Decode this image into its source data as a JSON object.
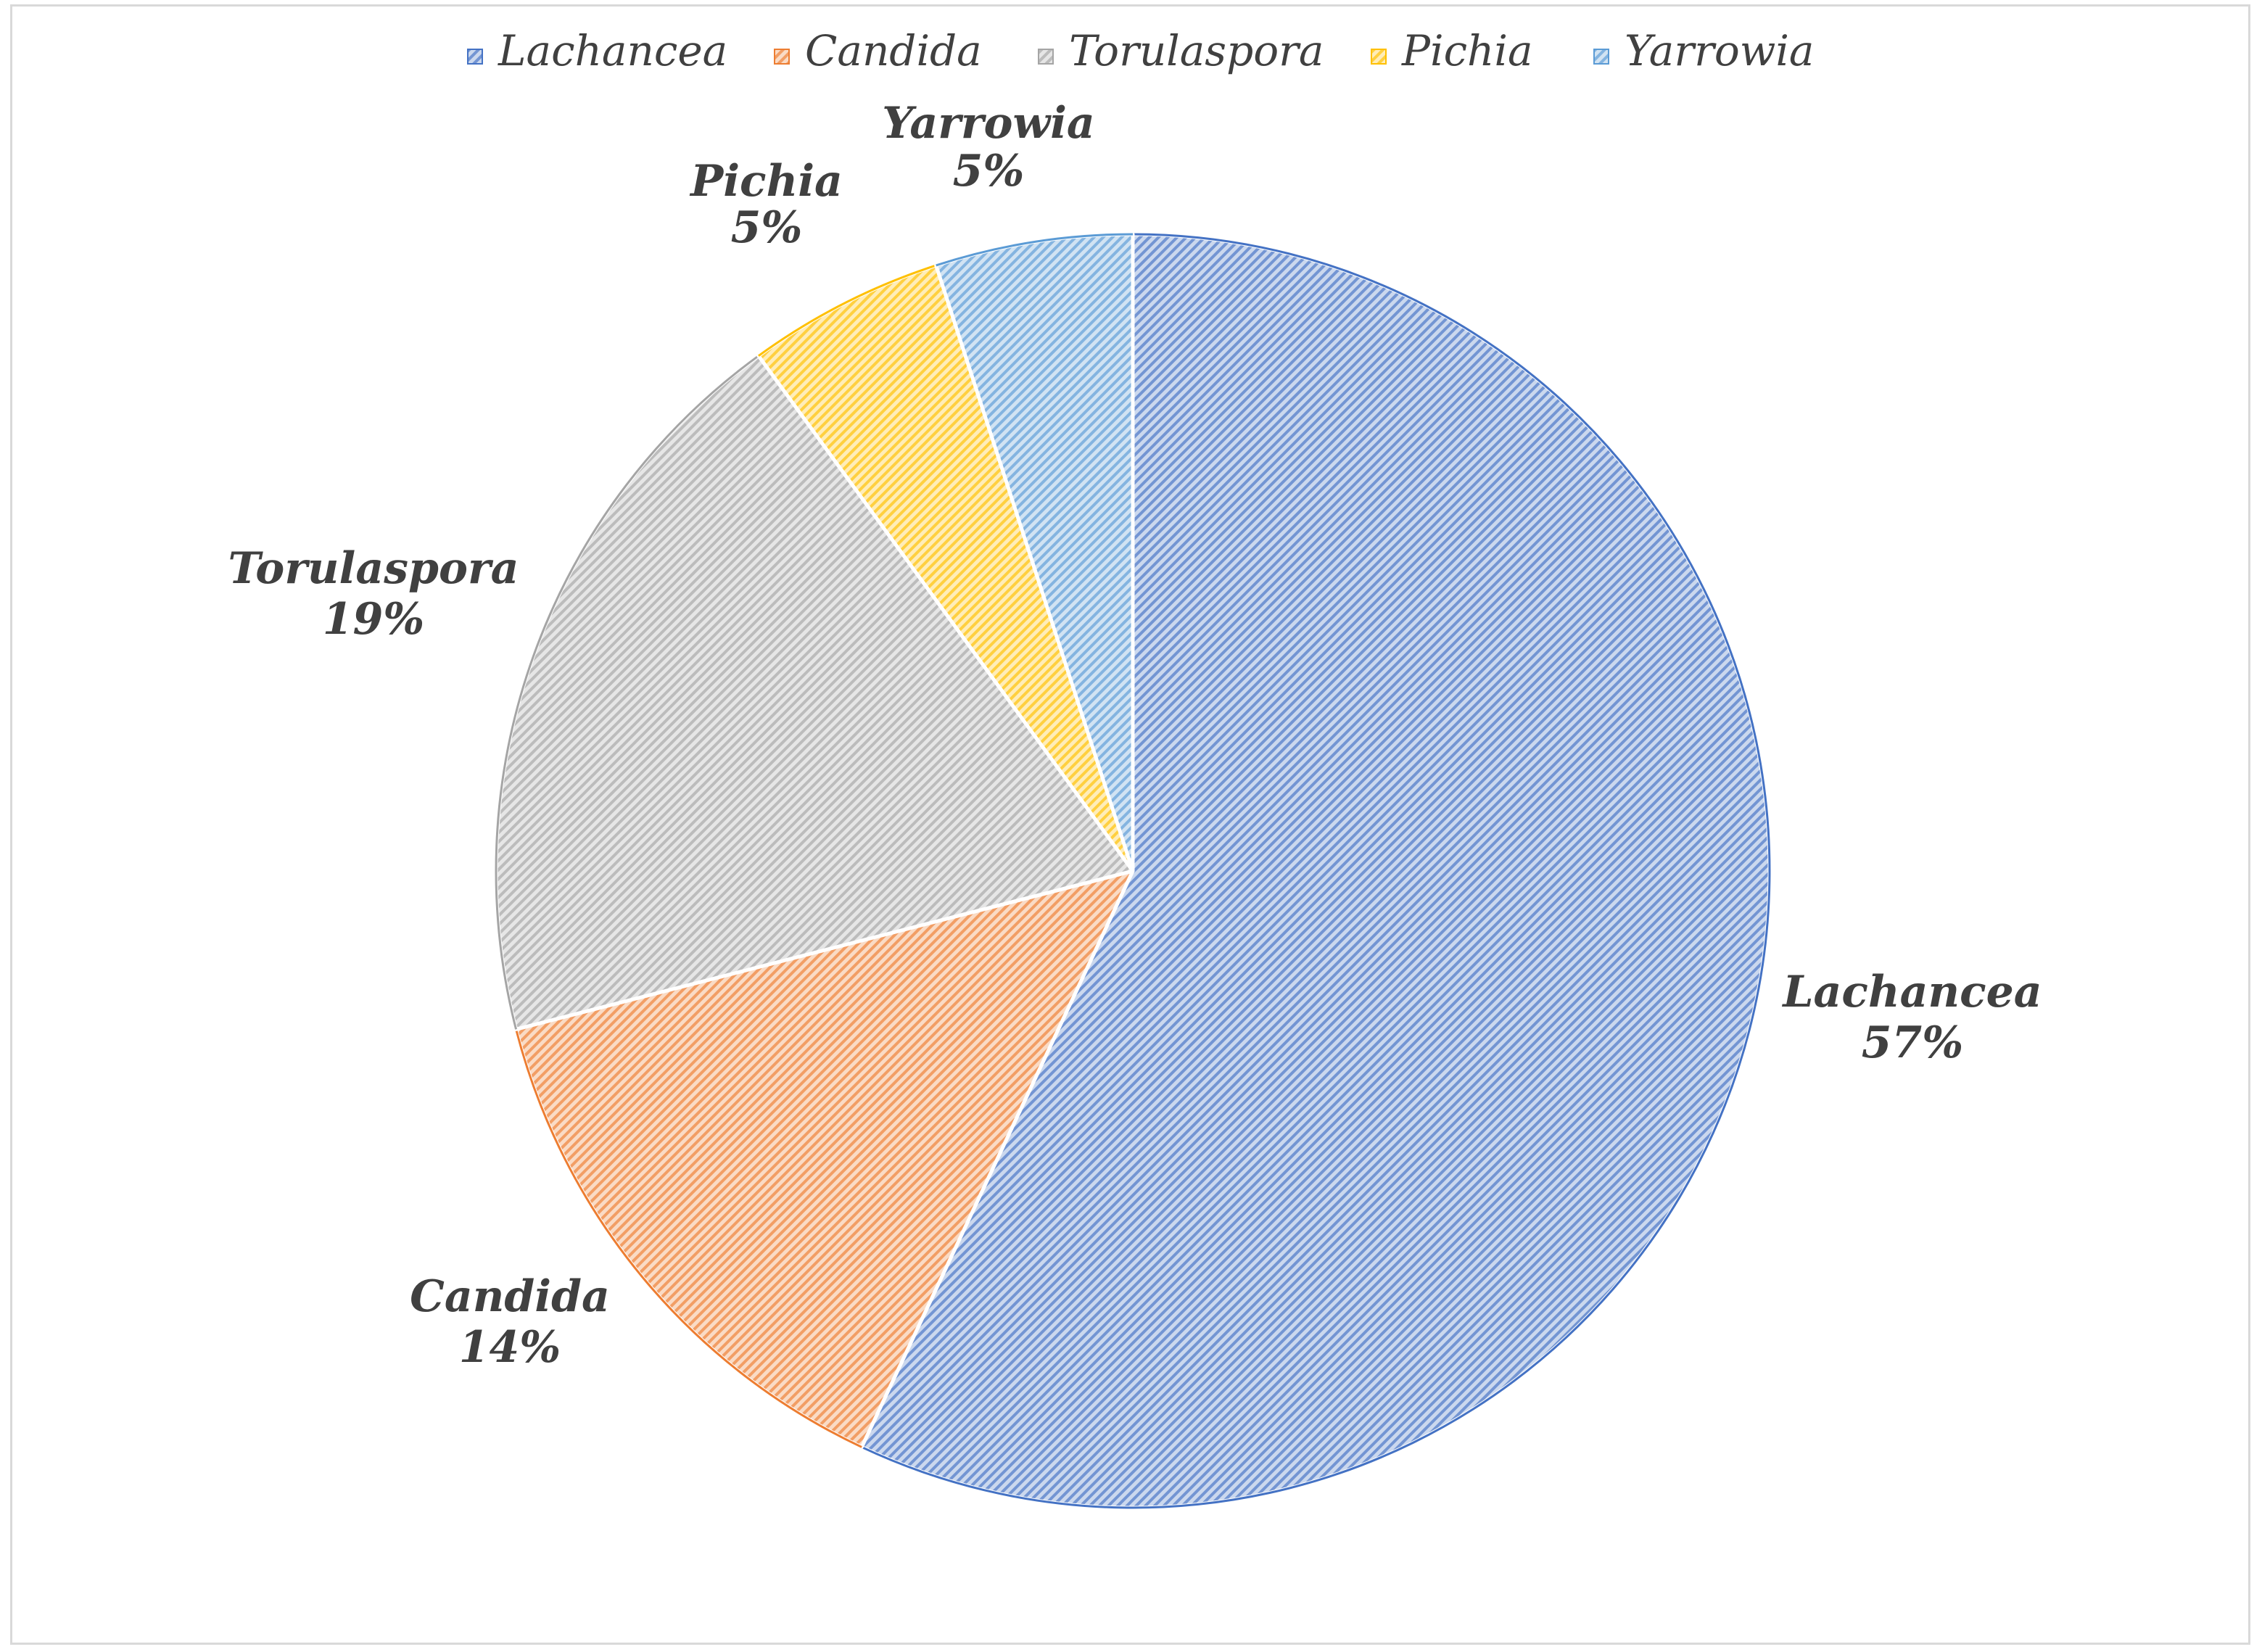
{
  "chart_data": {
    "type": "pie",
    "categories": [
      "Lachancea",
      "Candida",
      "Torulaspora",
      "Pichia",
      "Yarrowia"
    ],
    "values": [
      57,
      14,
      19,
      5,
      5
    ],
    "value_labels": [
      "57%",
      "14%",
      "19%",
      "5%",
      "5%"
    ],
    "colors": [
      "#4472c4",
      "#ed7d31",
      "#a5a5a5",
      "#ffc000",
      "#5b9bd5"
    ],
    "fill_style": "hatched",
    "legend_position": "top",
    "start_angle_deg": 0,
    "direction": "clockwise"
  }
}
